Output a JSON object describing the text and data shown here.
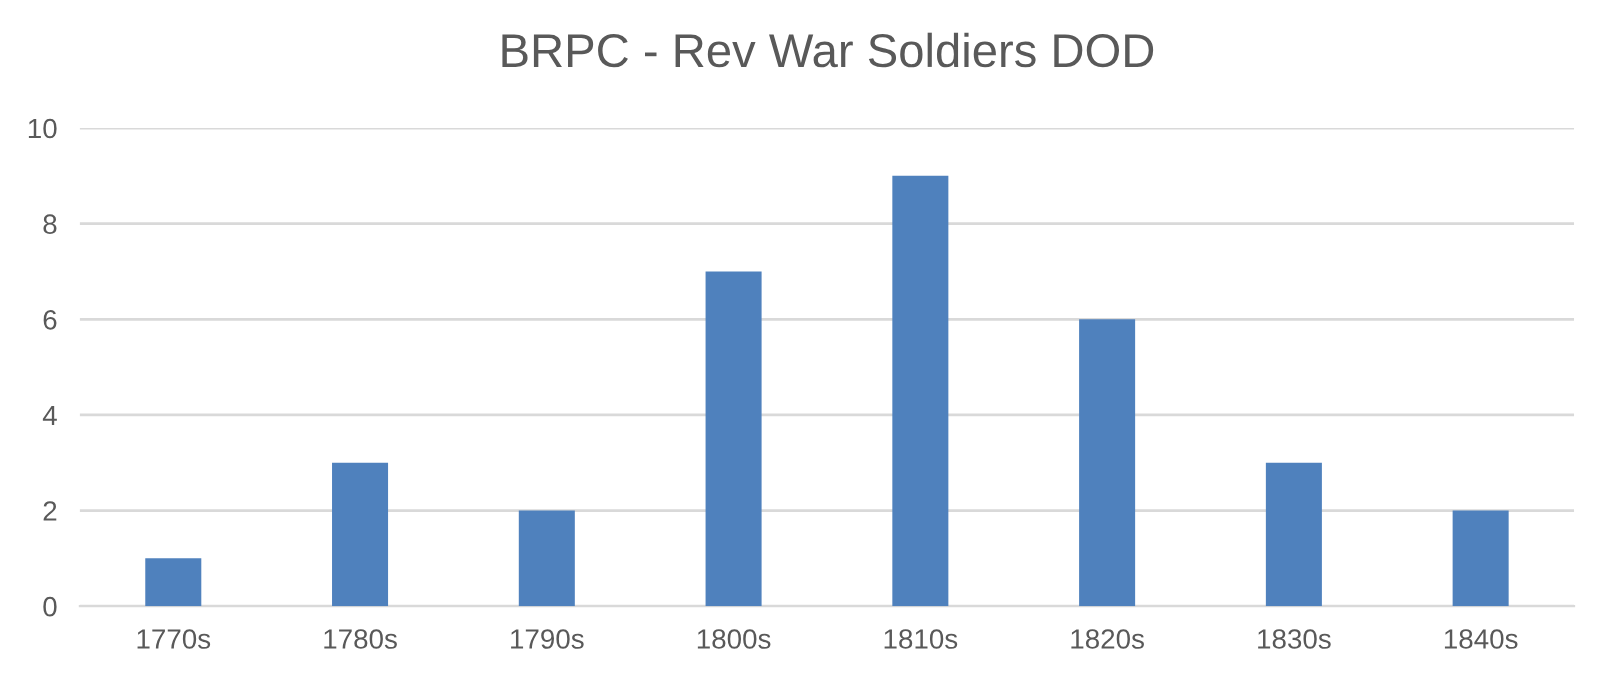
{
  "chart_data": {
    "type": "bar",
    "title": "BRPC - Rev War Soldiers DOD",
    "categories": [
      "1770s",
      "1780s",
      "1790s",
      "1800s",
      "1810s",
      "1820s",
      "1830s",
      "1840s"
    ],
    "values": [
      1,
      3,
      2,
      7,
      9,
      6,
      3,
      2
    ],
    "color": "#4f81bd",
    "ylim": [
      0,
      10
    ],
    "yticks": [
      0,
      2,
      4,
      6,
      8,
      10
    ],
    "grid": "y"
  }
}
